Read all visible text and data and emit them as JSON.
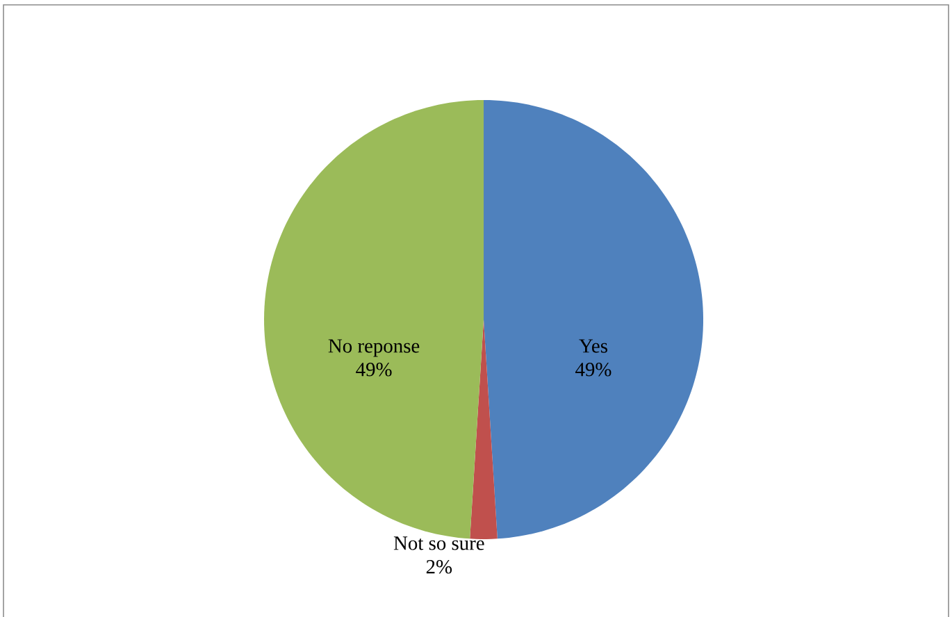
{
  "chart_data": {
    "type": "pie",
    "categories": [
      "Yes",
      "Not so sure",
      "No reponse"
    ],
    "values": [
      49,
      2,
      49
    ],
    "value_labels": [
      "49%",
      "2%",
      "49%"
    ],
    "colors": [
      "#4f81bd",
      "#c0504d",
      "#9bbb59"
    ]
  }
}
